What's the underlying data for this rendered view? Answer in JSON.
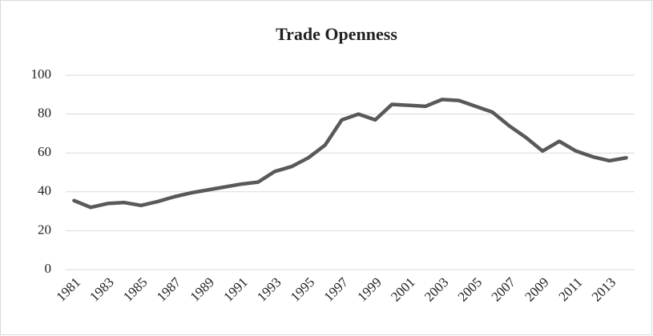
{
  "chart_data": {
    "type": "line",
    "title": "Trade Openness",
    "categories": [
      "1981",
      null,
      "1983",
      null,
      "1985",
      null,
      "1987",
      null,
      "1989",
      null,
      "1991",
      null,
      "1993",
      null,
      "1995",
      null,
      "1997",
      null,
      "1999",
      null,
      "2001",
      null,
      "2003",
      null,
      "2005",
      null,
      "2007",
      null,
      "2009",
      null,
      "2011",
      null,
      "2013",
      null
    ],
    "series": [
      {
        "name": "Trade Openness",
        "color": "#595959",
        "values": [
          35.5,
          32,
          34,
          34.5,
          33,
          35,
          37.5,
          39.5,
          41,
          42.5,
          44,
          45,
          50.5,
          53,
          57.5,
          64,
          77,
          80,
          77,
          85,
          84.5,
          84,
          87.5,
          87,
          84,
          81,
          74,
          68,
          61,
          66,
          61,
          58,
          56,
          57.5
        ]
      }
    ],
    "ylim": [
      0,
      100
    ],
    "yticks": [
      0,
      20,
      40,
      60,
      80,
      100
    ],
    "grid": true
  }
}
